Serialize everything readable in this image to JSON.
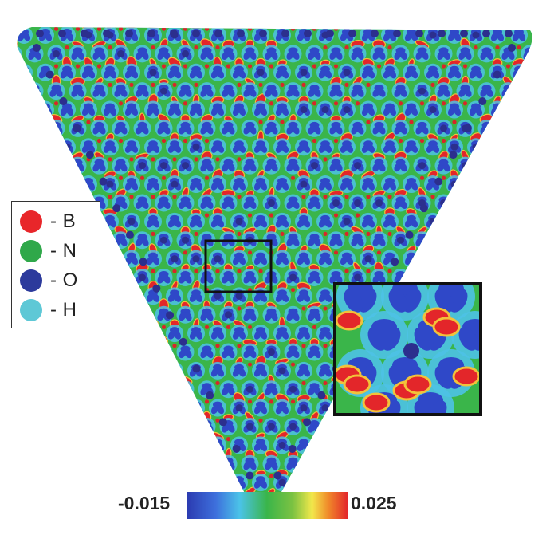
{
  "legend": {
    "items": [
      {
        "label": "- B",
        "color": "#e8262a"
      },
      {
        "label": "- N",
        "color": "#2fa84a"
      },
      {
        "label": "- O",
        "color": "#2c3a9c"
      },
      {
        "label": "- H",
        "color": "#5ec8d6"
      }
    ]
  },
  "colorbar": {
    "min_label": "-0.015",
    "max_label": "0.025",
    "stops": [
      "#2b3ab0",
      "#3d6fdc",
      "#4bc3e8",
      "#3ab54a",
      "#7cc242",
      "#f2e84b",
      "#f08a2a",
      "#e3262a"
    ]
  },
  "map_colors": {
    "background_field": "#3ab54a",
    "negative_lobe": "#2f48c8",
    "negative_halo": "#4ec2e6",
    "positive_lobe": "#e3262a",
    "positive_edge": "#f2c23a",
    "oxygen_atom": "#2c2f8e",
    "boron_atom": "#d8262a"
  }
}
